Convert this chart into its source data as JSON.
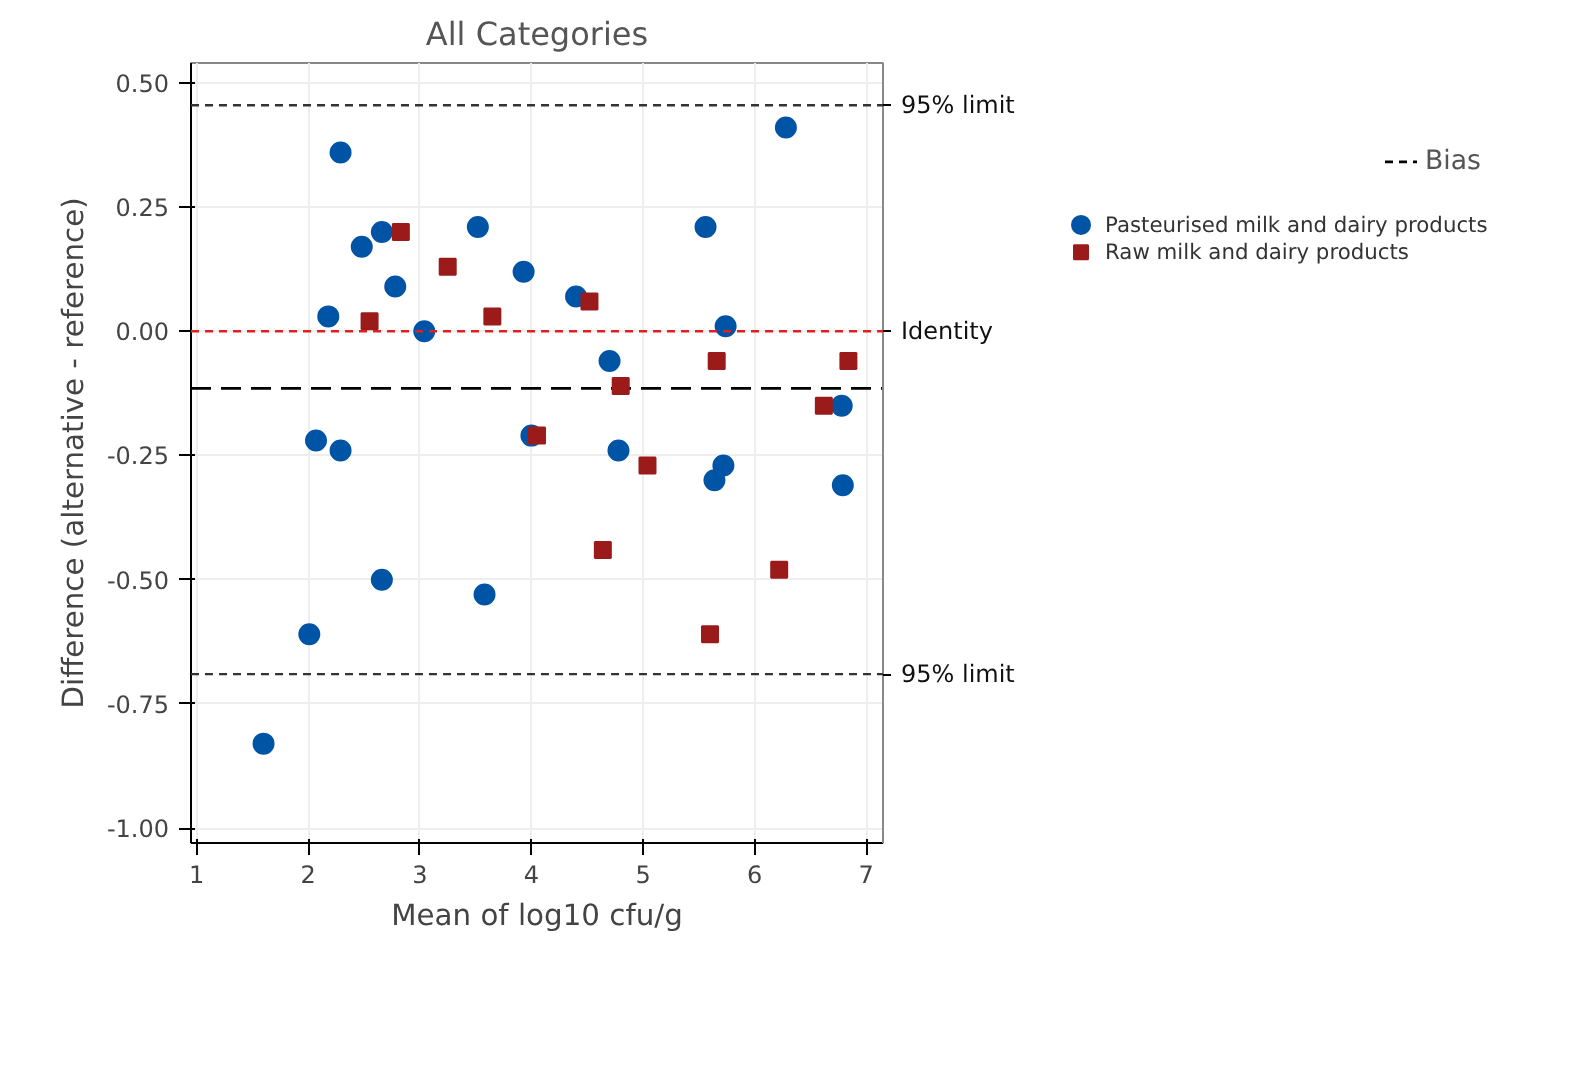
{
  "chart_data": {
    "type": "scatter",
    "title": "All Categories",
    "xlabel": "Mean of log10 cfu/g",
    "ylabel": "Difference (alternative - reference)",
    "xlim": [
      0.95,
      7.15
    ],
    "ylim": [
      -1.03,
      0.54
    ],
    "xticks": [
      1,
      2,
      3,
      4,
      5,
      6,
      7
    ],
    "yticks": [
      {
        "value": 0.5,
        "label": "0.50"
      },
      {
        "value": 0.25,
        "label": "0.25"
      },
      {
        "value": 0,
        "label": "0.00"
      },
      {
        "value": -0.25,
        "label": "-0.25"
      },
      {
        "value": -0.5,
        "label": "-0.50"
      },
      {
        "value": -0.75,
        "label": "-0.75"
      },
      {
        "value": -1,
        "label": "-1.00"
      }
    ],
    "grid": true,
    "legend": "right",
    "series": [
      {
        "name": "Pasteurised milk and dairy products",
        "color": "#0054a6",
        "marker": "circle",
        "x": [
          1.6,
          2.01,
          2.07,
          2.18,
          2.29,
          2.29,
          2.48,
          2.66,
          2.66,
          2.78,
          3.04,
          3.52,
          3.58,
          3.93,
          4.0,
          4.4,
          4.7,
          4.78,
          5.56,
          5.64,
          5.72,
          5.74,
          6.28,
          6.78,
          6.79
        ],
        "values": [
          -0.83,
          -0.61,
          -0.22,
          0.03,
          -0.24,
          0.36,
          0.17,
          0.2,
          -0.5,
          0.09,
          0.0,
          0.21,
          -0.53,
          0.12,
          -0.21,
          0.07,
          -0.06,
          -0.24,
          0.21,
          -0.3,
          -0.27,
          0.01,
          0.41,
          -0.15,
          -0.31
        ]
      },
      {
        "name": "Raw milk and dairy products",
        "color": "#9b1b1b",
        "marker": "square",
        "x": [
          2.55,
          2.83,
          3.25,
          3.65,
          4.05,
          4.52,
          4.64,
          4.8,
          5.04,
          5.6,
          5.66,
          6.22,
          6.62,
          6.84
        ],
        "values": [
          0.02,
          0.2,
          0.13,
          0.03,
          -0.21,
          0.06,
          -0.44,
          -0.11,
          -0.27,
          -0.61,
          -0.06,
          -0.48,
          -0.15,
          -0.06
        ]
      }
    ],
    "ref_lines": [
      {
        "axis": "y",
        "value": 0.455,
        "label": "95% limit",
        "color": "#333333",
        "line_style": "dashed"
      },
      {
        "axis": "y",
        "value": 0,
        "label": "Identity",
        "color": "#e02020",
        "line_style": "dashed"
      },
      {
        "axis": "y",
        "value": -0.115,
        "label": "Bias",
        "color": "#000000",
        "line_style": "longdash"
      },
      {
        "axis": "y",
        "value": -0.69,
        "label": "95% limit",
        "color": "#333333",
        "line_style": "dashed"
      }
    ]
  }
}
